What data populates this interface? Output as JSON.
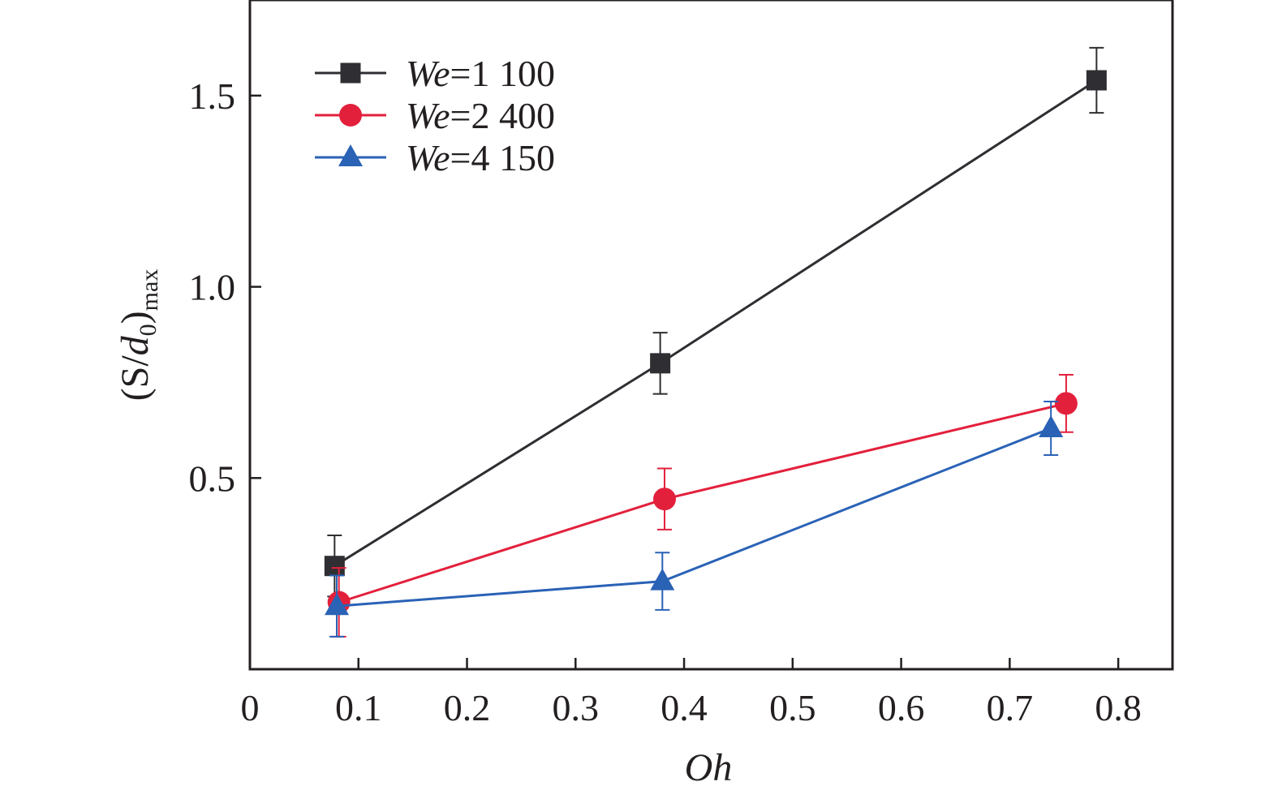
{
  "chart_data": {
    "type": "line",
    "xlabel": "Oh",
    "ylabel": {
      "open": "(S/",
      "d": "d",
      "d_sub": "0",
      "close": ")",
      "sub": "max"
    },
    "xlim": [
      0,
      0.85
    ],
    "ylim": [
      0,
      1.75
    ],
    "x_ticks": [
      {
        "value": 0,
        "label": "0"
      },
      {
        "value": 0.1,
        "label": "0.1"
      },
      {
        "value": 0.2,
        "label": "0.2"
      },
      {
        "value": 0.3,
        "label": "0.3"
      },
      {
        "value": 0.4,
        "label": "0.4"
      },
      {
        "value": 0.5,
        "label": "0.5"
      },
      {
        "value": 0.6,
        "label": "0.6"
      },
      {
        "value": 0.7,
        "label": "0.7"
      },
      {
        "value": 0.8,
        "label": "0.8"
      }
    ],
    "y_ticks": [
      {
        "value": 0.5,
        "label": "0.5"
      },
      {
        "value": 1.0,
        "label": "1.0"
      },
      {
        "value": 1.5,
        "label": "1.5"
      }
    ],
    "grid": false,
    "legend_position": "top-left",
    "series": [
      {
        "name_italic": "We",
        "name_rest": "=1 100",
        "color": "#2f2f33",
        "marker": "square",
        "points": [
          {
            "x": 0.078,
            "y": 0.27,
            "err": 0.08
          },
          {
            "x": 0.378,
            "y": 0.8,
            "err": 0.08
          },
          {
            "x": 0.78,
            "y": 1.54,
            "err": 0.085
          }
        ]
      },
      {
        "name_italic": "We",
        "name_rest": "=2 400",
        "color": "#e3203c",
        "marker": "circle",
        "points": [
          {
            "x": 0.082,
            "y": 0.175,
            "err": 0.09
          },
          {
            "x": 0.382,
            "y": 0.445,
            "err": 0.08
          },
          {
            "x": 0.752,
            "y": 0.695,
            "err": 0.075
          }
        ]
      },
      {
        "name_italic": "We",
        "name_rest": "=4 150",
        "color": "#2a62b6",
        "marker": "triangle",
        "points": [
          {
            "x": 0.08,
            "y": 0.165,
            "err": 0.08
          },
          {
            "x": 0.38,
            "y": 0.23,
            "err": 0.075
          },
          {
            "x": 0.738,
            "y": 0.63,
            "err": 0.07
          }
        ]
      }
    ]
  }
}
